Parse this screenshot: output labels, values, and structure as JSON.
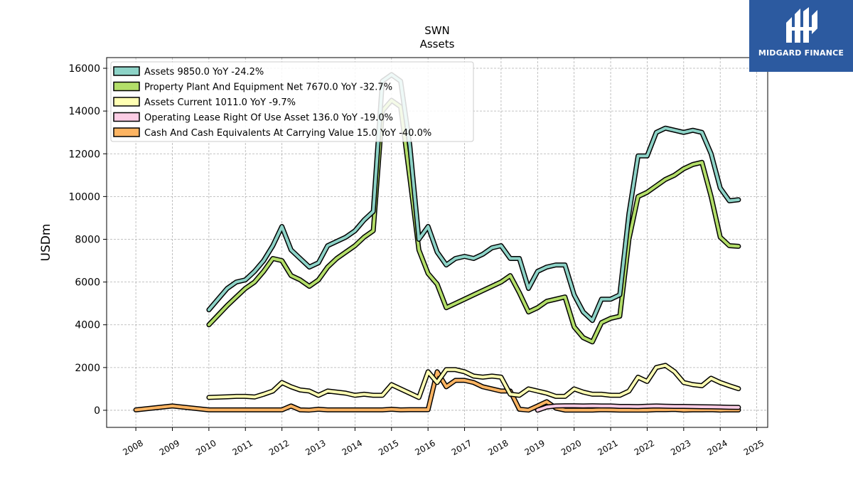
{
  "brand": {
    "name": "MIDGARD FINANCE",
    "bg_color": "#2c5aa0"
  },
  "chart_data": {
    "type": "line",
    "title": "SWN",
    "subtitle": "Assets",
    "xlabel": "",
    "ylabel": "USDm",
    "xlim": [
      2007.2,
      2025.3
    ],
    "ylim": [
      -800,
      16500
    ],
    "xticks": [
      "2008",
      "2009",
      "2010",
      "2011",
      "2012",
      "2013",
      "2014",
      "2015",
      "2016",
      "2017",
      "2018",
      "2019",
      "2020",
      "2021",
      "2022",
      "2023",
      "2024",
      "2025"
    ],
    "yticks": [
      0,
      2000,
      4000,
      6000,
      8000,
      10000,
      12000,
      14000,
      16000
    ],
    "ytick_labels": [
      "0",
      "2000",
      "4000",
      "6000",
      "8000",
      "10000",
      "12000",
      "14000",
      "16000"
    ],
    "grid": true,
    "legend_position": "top-left",
    "series": [
      {
        "name": "Assets  9850.0 YoY -24.2%",
        "color": "#8dd3c7",
        "x": [
          2010.0,
          2010.5,
          2010.75,
          2011.0,
          2011.25,
          2011.5,
          2011.75,
          2012.0,
          2012.25,
          2012.5,
          2012.75,
          2013.0,
          2013.25,
          2013.5,
          2013.75,
          2014.0,
          2014.25,
          2014.5,
          2014.75,
          2015.0,
          2015.25,
          2015.5,
          2015.75,
          2016.0,
          2016.25,
          2016.5,
          2016.75,
          2017.0,
          2017.25,
          2017.5,
          2017.75,
          2018.0,
          2018.25,
          2018.5,
          2018.75,
          2019.0,
          2019.25,
          2019.5,
          2019.75,
          2020.0,
          2020.25,
          2020.5,
          2020.75,
          2021.0,
          2021.25,
          2021.5,
          2021.75,
          2022.0,
          2022.25,
          2022.5,
          2022.75,
          2023.0,
          2023.25,
          2023.5,
          2023.75,
          2024.0,
          2024.25,
          2024.5
        ],
        "values": [
          4700,
          5700,
          6000,
          6100,
          6500,
          7000,
          7700,
          8600,
          7500,
          7100,
          6700,
          6900,
          7700,
          7900,
          8100,
          8400,
          8900,
          9300,
          15400,
          15700,
          15400,
          12400,
          8000,
          8600,
          7400,
          6800,
          7100,
          7200,
          7100,
          7300,
          7600,
          7700,
          7100,
          7100,
          5700,
          6500,
          6700,
          6800,
          6800,
          5400,
          4600,
          4200,
          5200,
          5200,
          5400,
          9200,
          11900,
          11900,
          13000,
          13200,
          13100,
          13000,
          13100,
          13000,
          12000,
          10400,
          9800,
          9850
        ]
      },
      {
        "name": "Property Plant And Equipment Net  7670.0 YoY -32.7%",
        "color": "#b3de69",
        "x": [
          2010.0,
          2010.5,
          2010.75,
          2011.0,
          2011.25,
          2011.5,
          2011.75,
          2012.0,
          2012.25,
          2012.5,
          2012.75,
          2013.0,
          2013.25,
          2013.5,
          2013.75,
          2014.0,
          2014.25,
          2014.5,
          2014.75,
          2015.0,
          2015.25,
          2015.5,
          2015.75,
          2016.0,
          2016.25,
          2016.5,
          2016.75,
          2017.0,
          2017.25,
          2017.5,
          2017.75,
          2018.0,
          2018.25,
          2018.5,
          2018.75,
          2019.0,
          2019.25,
          2019.5,
          2019.75,
          2020.0,
          2020.25,
          2020.5,
          2020.75,
          2021.0,
          2021.25,
          2021.5,
          2021.75,
          2022.0,
          2022.25,
          2022.5,
          2022.75,
          2023.0,
          2023.25,
          2023.5,
          2023.75,
          2024.0,
          2024.25,
          2024.5
        ],
        "values": [
          4000,
          4900,
          5300,
          5700,
          6000,
          6500,
          7100,
          7000,
          6300,
          6100,
          5800,
          6100,
          6700,
          7100,
          7400,
          7700,
          8100,
          8400,
          14000,
          14500,
          14200,
          10900,
          7500,
          6400,
          5900,
          4800,
          5000,
          5200,
          5400,
          5600,
          5800,
          6000,
          6300,
          5500,
          4600,
          4800,
          5100,
          5200,
          5300,
          3900,
          3400,
          3200,
          4100,
          4300,
          4400,
          8000,
          10000,
          10200,
          10500,
          10800,
          11000,
          11300,
          11500,
          11600,
          10000,
          8100,
          7700,
          7670
        ]
      },
      {
        "name": "Assets Current  1011.0 YoY -9.7%",
        "color": "#ffffb3",
        "x": [
          2010.0,
          2010.5,
          2010.75,
          2011.0,
          2011.25,
          2011.5,
          2011.75,
          2012.0,
          2012.25,
          2012.5,
          2012.75,
          2013.0,
          2013.25,
          2013.5,
          2013.75,
          2014.0,
          2014.25,
          2014.5,
          2014.75,
          2015.0,
          2015.25,
          2015.5,
          2015.75,
          2016.0,
          2016.25,
          2016.5,
          2016.75,
          2017.0,
          2017.25,
          2017.5,
          2017.75,
          2018.0,
          2018.25,
          2018.5,
          2018.75,
          2019.0,
          2019.25,
          2019.5,
          2019.75,
          2020.0,
          2020.25,
          2020.5,
          2020.75,
          2021.0,
          2021.25,
          2021.5,
          2021.75,
          2022.0,
          2022.25,
          2022.5,
          2022.75,
          2023.0,
          2023.25,
          2023.5,
          2023.75,
          2024.0,
          2024.25,
          2024.5
        ],
        "values": [
          600,
          630,
          650,
          650,
          620,
          750,
          900,
          1300,
          1100,
          950,
          900,
          700,
          900,
          850,
          800,
          700,
          750,
          700,
          700,
          1200,
          1000,
          800,
          600,
          1800,
          1300,
          1900,
          1900,
          1800,
          1600,
          1550,
          1600,
          1550,
          750,
          700,
          1000,
          900,
          800,
          650,
          650,
          1000,
          850,
          750,
          750,
          700,
          700,
          900,
          1550,
          1350,
          2000,
          2100,
          1800,
          1300,
          1200,
          1150,
          1500,
          1300,
          1150,
          1011
        ]
      },
      {
        "name": "Operating Lease Right Of Use Asset  136.0 YoY -19.0%",
        "color": "#fccde5",
        "x": [
          2019.0,
          2019.25,
          2019.5,
          2019.75,
          2020.0,
          2020.25,
          2020.5,
          2020.75,
          2021.0,
          2021.25,
          2021.5,
          2021.75,
          2022.0,
          2022.25,
          2022.5,
          2022.75,
          2023.0,
          2023.25,
          2023.5,
          2023.75,
          2024.0,
          2024.25,
          2024.5
        ],
        "values": [
          5,
          150,
          200,
          210,
          210,
          200,
          210,
          200,
          200,
          180,
          180,
          170,
          190,
          200,
          190,
          180,
          180,
          170,
          165,
          160,
          150,
          140,
          136
        ]
      },
      {
        "name": "Cash And Cash Equivalents At Carrying Value  15.0 YoY -40.0%",
        "color": "#fdb462",
        "x": [
          2008.0,
          2009.0,
          2010.0,
          2010.5,
          2010.75,
          2011.0,
          2011.25,
          2011.5,
          2011.75,
          2012.0,
          2012.25,
          2012.5,
          2012.75,
          2013.0,
          2013.25,
          2013.5,
          2013.75,
          2014.0,
          2014.25,
          2014.5,
          2014.75,
          2015.0,
          2015.25,
          2015.5,
          2015.75,
          2016.0,
          2016.25,
          2016.5,
          2016.75,
          2017.0,
          2017.25,
          2017.5,
          2017.75,
          2018.0,
          2018.25,
          2018.5,
          2018.75,
          2019.0,
          2019.25,
          2019.5,
          2019.75,
          2020.0,
          2020.25,
          2020.5,
          2020.75,
          2021.0,
          2021.25,
          2021.5,
          2021.75,
          2022.0,
          2022.25,
          2022.5,
          2022.75,
          2023.0,
          2023.25,
          2023.5,
          2023.75,
          2024.0,
          2024.25,
          2024.5
        ],
        "values": [
          20,
          200,
          20,
          20,
          20,
          20,
          20,
          20,
          20,
          20,
          200,
          20,
          10,
          50,
          20,
          20,
          20,
          20,
          20,
          20,
          20,
          50,
          20,
          30,
          30,
          30,
          1800,
          1100,
          1400,
          1400,
          1300,
          1100,
          1000,
          900,
          900,
          50,
          10,
          200,
          400,
          100,
          10,
          10,
          10,
          10,
          30,
          20,
          10,
          10,
          10,
          10,
          30,
          30,
          40,
          10,
          20,
          20,
          30,
          10,
          20,
          15
        ]
      }
    ]
  }
}
